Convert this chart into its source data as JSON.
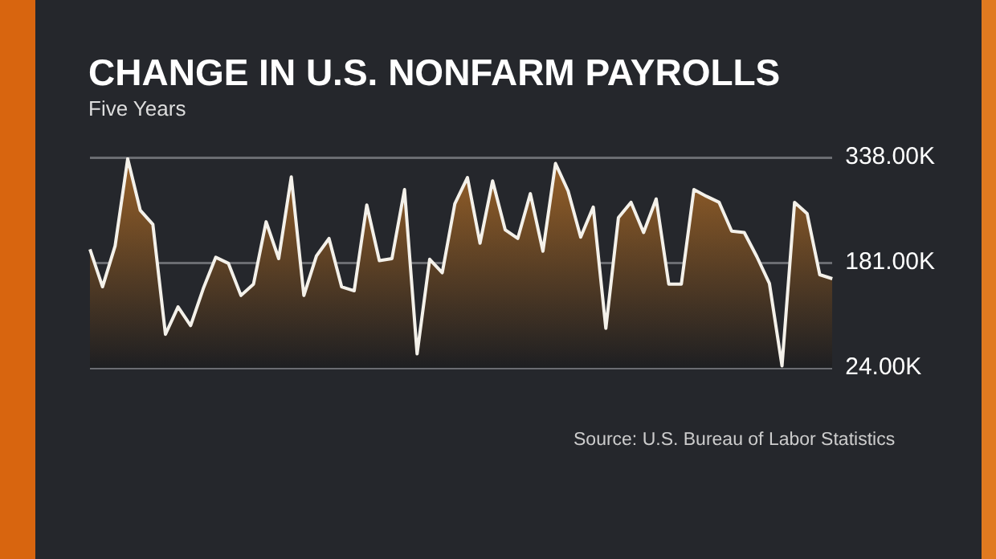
{
  "chart_data": {
    "type": "area",
    "title": "CHANGE IN U.S. NONFARM PAYROLLS",
    "subtitle": "Five Years",
    "annotations": [
      "Source: U.S. Bureau of Labor Statistics"
    ],
    "categories": [
      null,
      null,
      null,
      null,
      null,
      null,
      null,
      null,
      null,
      null,
      null,
      null,
      null,
      null,
      null,
      null,
      null,
      null,
      null,
      null,
      null,
      null,
      null,
      null,
      null,
      null,
      null,
      null,
      null,
      null,
      null,
      null,
      null,
      null,
      null,
      null,
      null,
      null,
      null,
      null,
      null,
      null,
      null,
      null,
      null,
      null,
      null,
      null,
      null,
      null,
      null,
      null,
      null,
      null,
      null,
      null,
      null,
      null,
      null,
      null
    ],
    "series": [
      {
        "color": "#9a6228",
        "values": [
          201,
          145,
          206,
          336,
          259,
          238,
          74,
          115,
          87,
          142,
          189,
          180,
          132,
          149,
          242,
          187,
          309,
          132,
          191,
          217,
          145,
          139,
          267,
          184,
          187,
          290,
          45,
          186,
          166,
          269,
          308,
          210,
          303,
          230,
          217,
          284,
          198,
          329,
          288,
          219,
          264,
          83,
          248,
          271,
          226,
          276,
          149,
          149,
          290,
          280,
          271,
          228,
          226,
          190,
          150,
          27,
          271,
          254,
          163,
          157
        ]
      }
    ],
    "ylim": [
      24,
      338
    ],
    "yticks": [
      {
        "value": 24,
        "label": "24.00K"
      },
      {
        "value": 181,
        "label": "181.00K"
      },
      {
        "value": 338,
        "label": "338.00K"
      }
    ],
    "grid": "y",
    "legend": false,
    "tick_labels": "y"
  }
}
